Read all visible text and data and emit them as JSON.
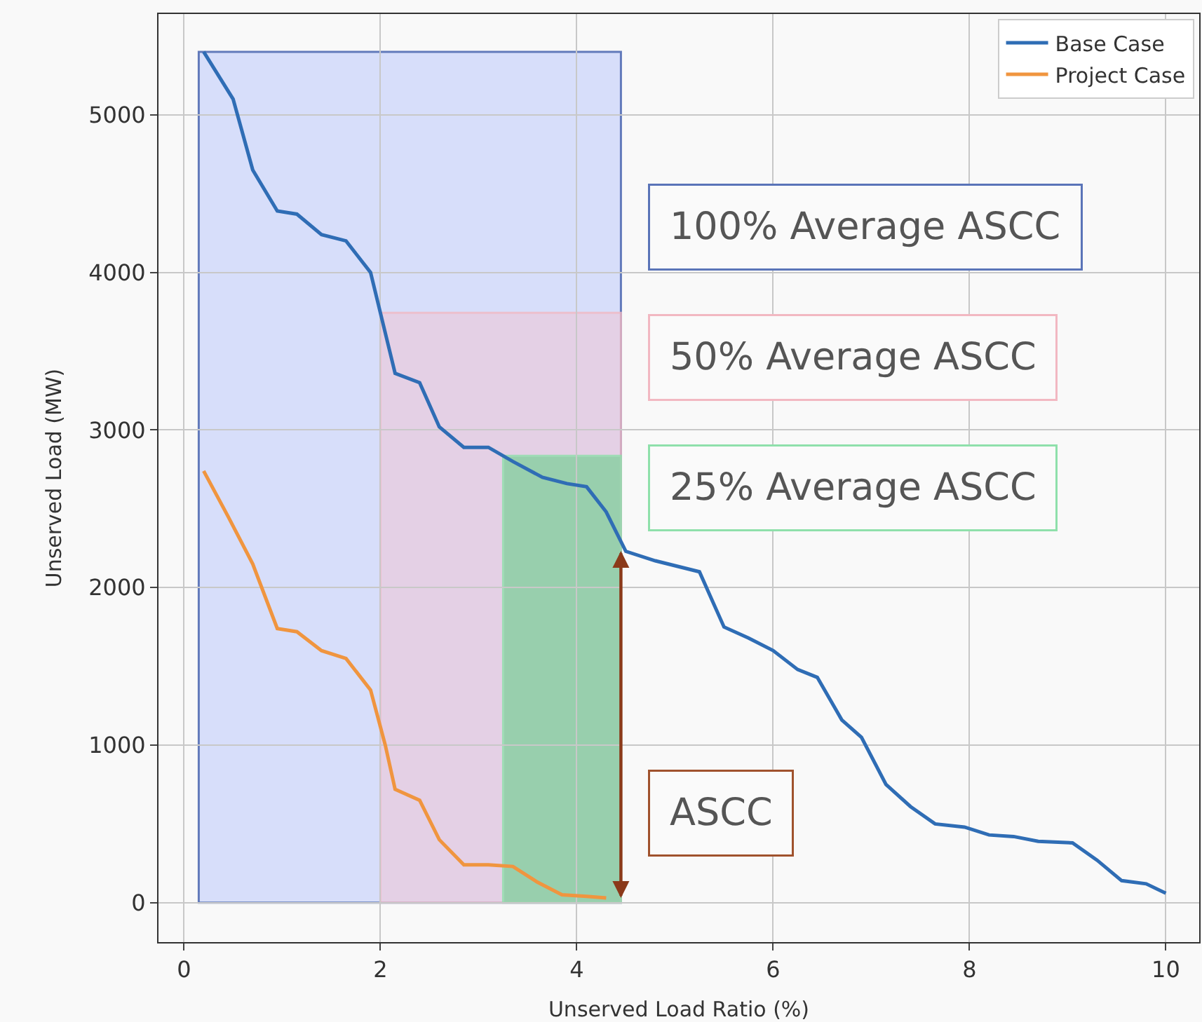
{
  "chart_data": {
    "type": "line",
    "xlabel": "Unserved Load Ratio (%)",
    "ylabel": "Unserved Load (MW)",
    "series": [
      {
        "name": "Base Case",
        "color": "#2f6db5",
        "x": [
          0.2,
          0.5,
          0.7,
          0.95,
          1.15,
          1.4,
          1.65,
          1.9,
          2.15,
          2.4,
          2.6,
          2.85,
          3.1,
          3.35,
          3.65,
          3.9,
          4.1,
          4.3,
          4.5,
          4.8,
          5.25,
          5.5,
          5.75,
          6.0,
          6.25,
          6.45,
          6.7,
          6.9,
          7.15,
          7.4,
          7.65,
          7.95,
          8.2,
          8.45,
          8.7,
          9.05,
          9.3,
          9.55,
          9.8,
          10.0
        ],
        "values": [
          5400,
          5100,
          4650,
          4390,
          4370,
          4240,
          4200,
          4000,
          3360,
          3300,
          3020,
          2890,
          2890,
          2800,
          2700,
          2660,
          2640,
          2480,
          2230,
          2170,
          2100,
          1750,
          1680,
          1600,
          1480,
          1430,
          1160,
          1050,
          750,
          610,
          500,
          480,
          430,
          420,
          390,
          380,
          270,
          140,
          120,
          60
        ]
      },
      {
        "name": "Project Case",
        "color": "#f0953f",
        "x": [
          0.2,
          0.45,
          0.7,
          0.95,
          1.15,
          1.4,
          1.65,
          1.9,
          2.05,
          2.15,
          2.4,
          2.6,
          2.85,
          3.1,
          3.35,
          3.6,
          3.85,
          4.1,
          4.3
        ],
        "values": [
          2740,
          2450,
          2150,
          1740,
          1720,
          1600,
          1550,
          1350,
          1000,
          720,
          650,
          400,
          240,
          240,
          230,
          130,
          50,
          40,
          30
        ]
      }
    ],
    "bands": [
      {
        "axis": "x",
        "from": 0.15,
        "to": 4.45,
        "label": "100% Average ASCC",
        "color": "#d6ddfb"
      },
      {
        "axis": "x",
        "from": 2.0,
        "to": 4.45,
        "label": "50% Average ASCC",
        "color": "#e8cde0"
      },
      {
        "axis": "x",
        "from": 3.25,
        "to": 4.45,
        "label": "25% Average ASCC",
        "color": "#86cfa0"
      }
    ],
    "annotations": [
      {
        "text": "ASCC",
        "x": 4.45
      }
    ],
    "xlim": [
      -0.26,
      10.34
    ],
    "ylim": [
      -250,
      5640
    ],
    "xticks": [
      0,
      2,
      4,
      6,
      8,
      10
    ],
    "yticks": [
      0,
      1000,
      2000,
      3000,
      4000,
      5000
    ],
    "grid": true,
    "legend": "top right",
    "line_style": "solid",
    "marker": "none"
  }
}
